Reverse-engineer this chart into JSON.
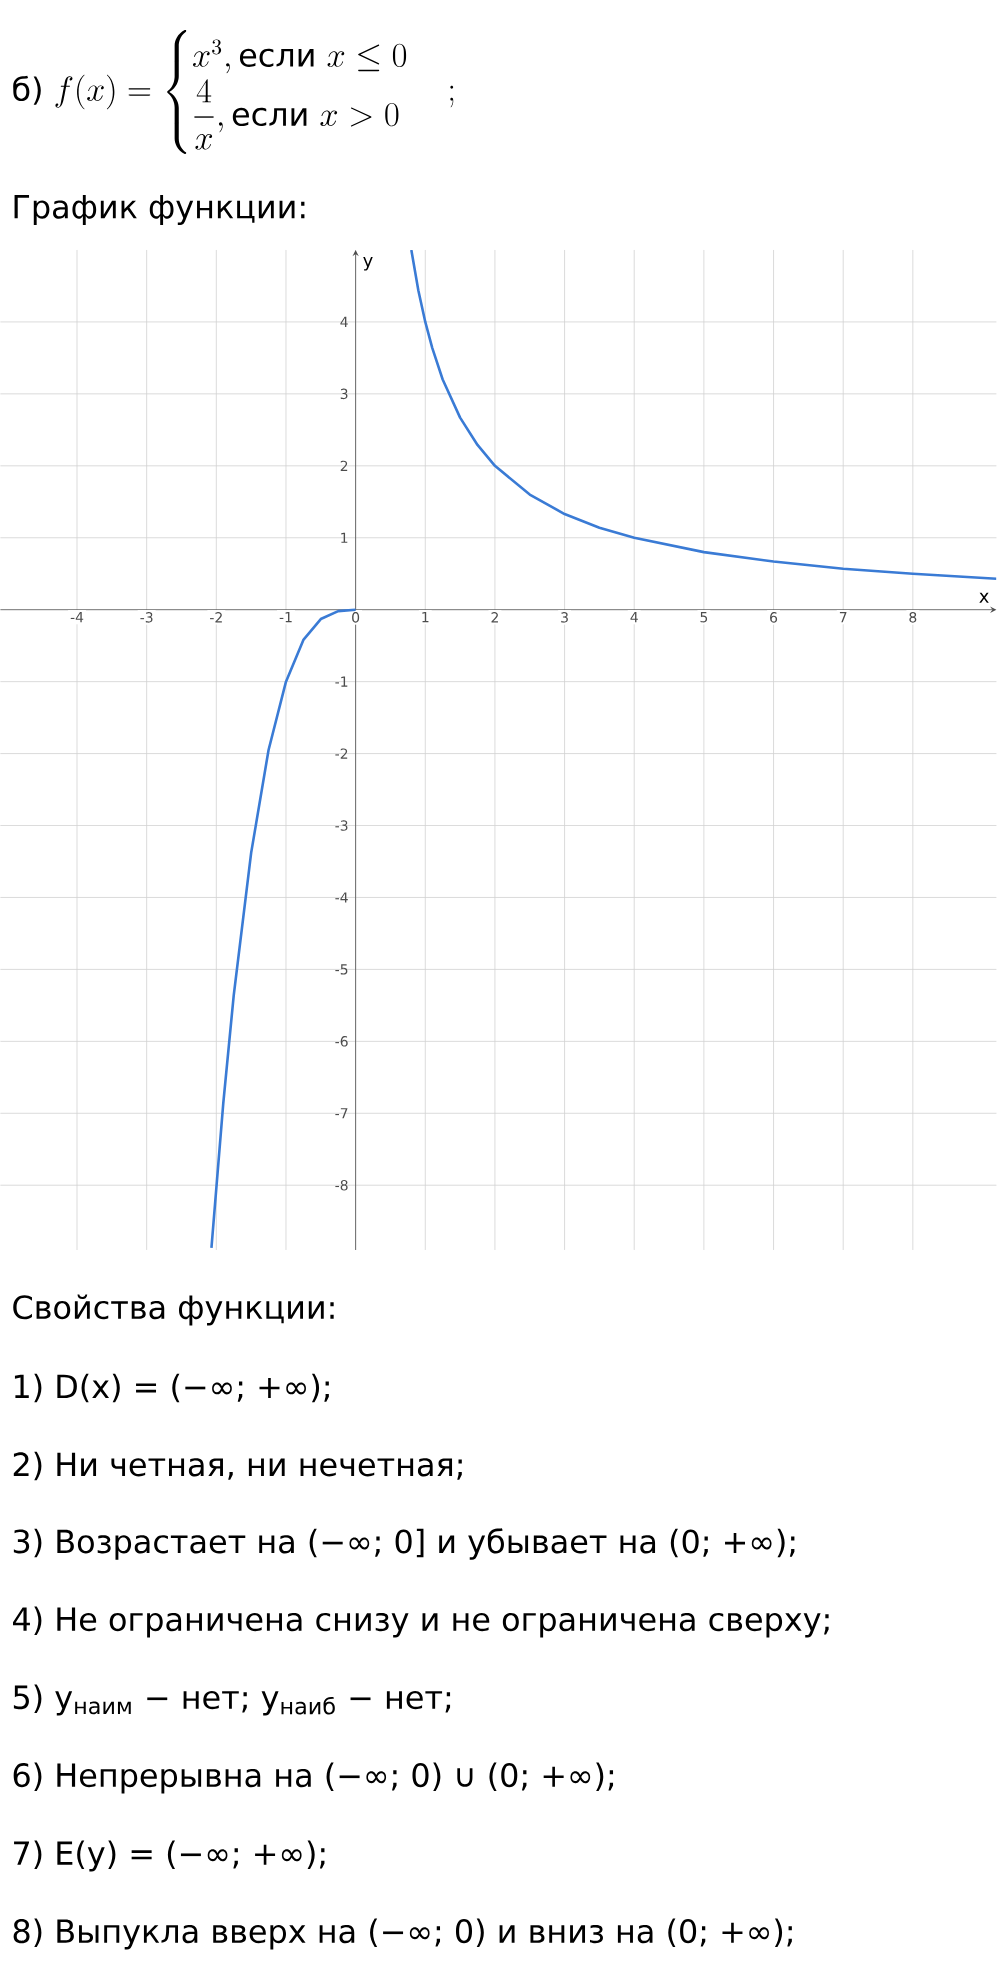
{
  "chart_data": {
    "type": "line",
    "title": "\\text{б) } f(x)=\\begin{cases}x^{3}, \\text{если } x\\le 0\\\\ \\dfrac{4}{x}, \\text{если } x>0\\end{cases};",
    "subtitle": "График функции:",
    "xlabel": "x",
    "ylabel": "y",
    "xlim": [
      -5.1,
      9.2
    ],
    "ylim": [
      -8.9,
      5
    ],
    "xticks": [
      -4,
      -3,
      -2,
      -1,
      0,
      1,
      2,
      3,
      4,
      5,
      6,
      7,
      8
    ],
    "yticks": [
      -8,
      -7,
      -6,
      -5,
      -4,
      -3,
      -2,
      -1,
      1,
      2,
      3,
      4
    ],
    "grid": true,
    "series": [
      {
        "color": "#3a7bd5",
        "x": [
          -2.07,
          -1.9,
          -1.75,
          -1.5,
          -1.25,
          -1,
          -0.75,
          -0.5,
          -0.25,
          0
        ],
        "values": [
          -8.87,
          -6.86,
          -5.36,
          -3.38,
          -1.95,
          -1,
          -0.42,
          -0.13,
          -0.02,
          0
        ]
      },
      {
        "color": "#3a7bd5",
        "x": [
          0.8,
          0.9,
          1,
          1.1,
          1.25,
          1.5,
          1.75,
          2,
          2.5,
          3,
          3.5,
          4,
          5,
          6,
          7,
          8,
          9.2
        ],
        "values": [
          5,
          4.44,
          4,
          3.64,
          3.2,
          2.67,
          2.29,
          2,
          1.6,
          1.33,
          1.14,
          1,
          0.8,
          0.67,
          0.57,
          0.5,
          0.43
        ]
      }
    ],
    "annotations": [
      "Свойства функции:",
      "1) D(x) = (−∞; +∞);",
      "2) Ни четная, ни нечетная;",
      "3) Возрастает на (−∞; 0] и убывает на (0; +∞);",
      "4) Не ограничена снизу и не ограничена сверху;",
      "5) y$_{наим}$ − нет; y$_{наиб}$ − нет;",
      "6) Непрерывна на (−∞; 0) ∪ (0; +∞);",
      "7) E(y) = (−∞; +∞);",
      "8) Выпукла вверх на (−∞; 0) и вниз на (0; +∞);"
    ]
  }
}
